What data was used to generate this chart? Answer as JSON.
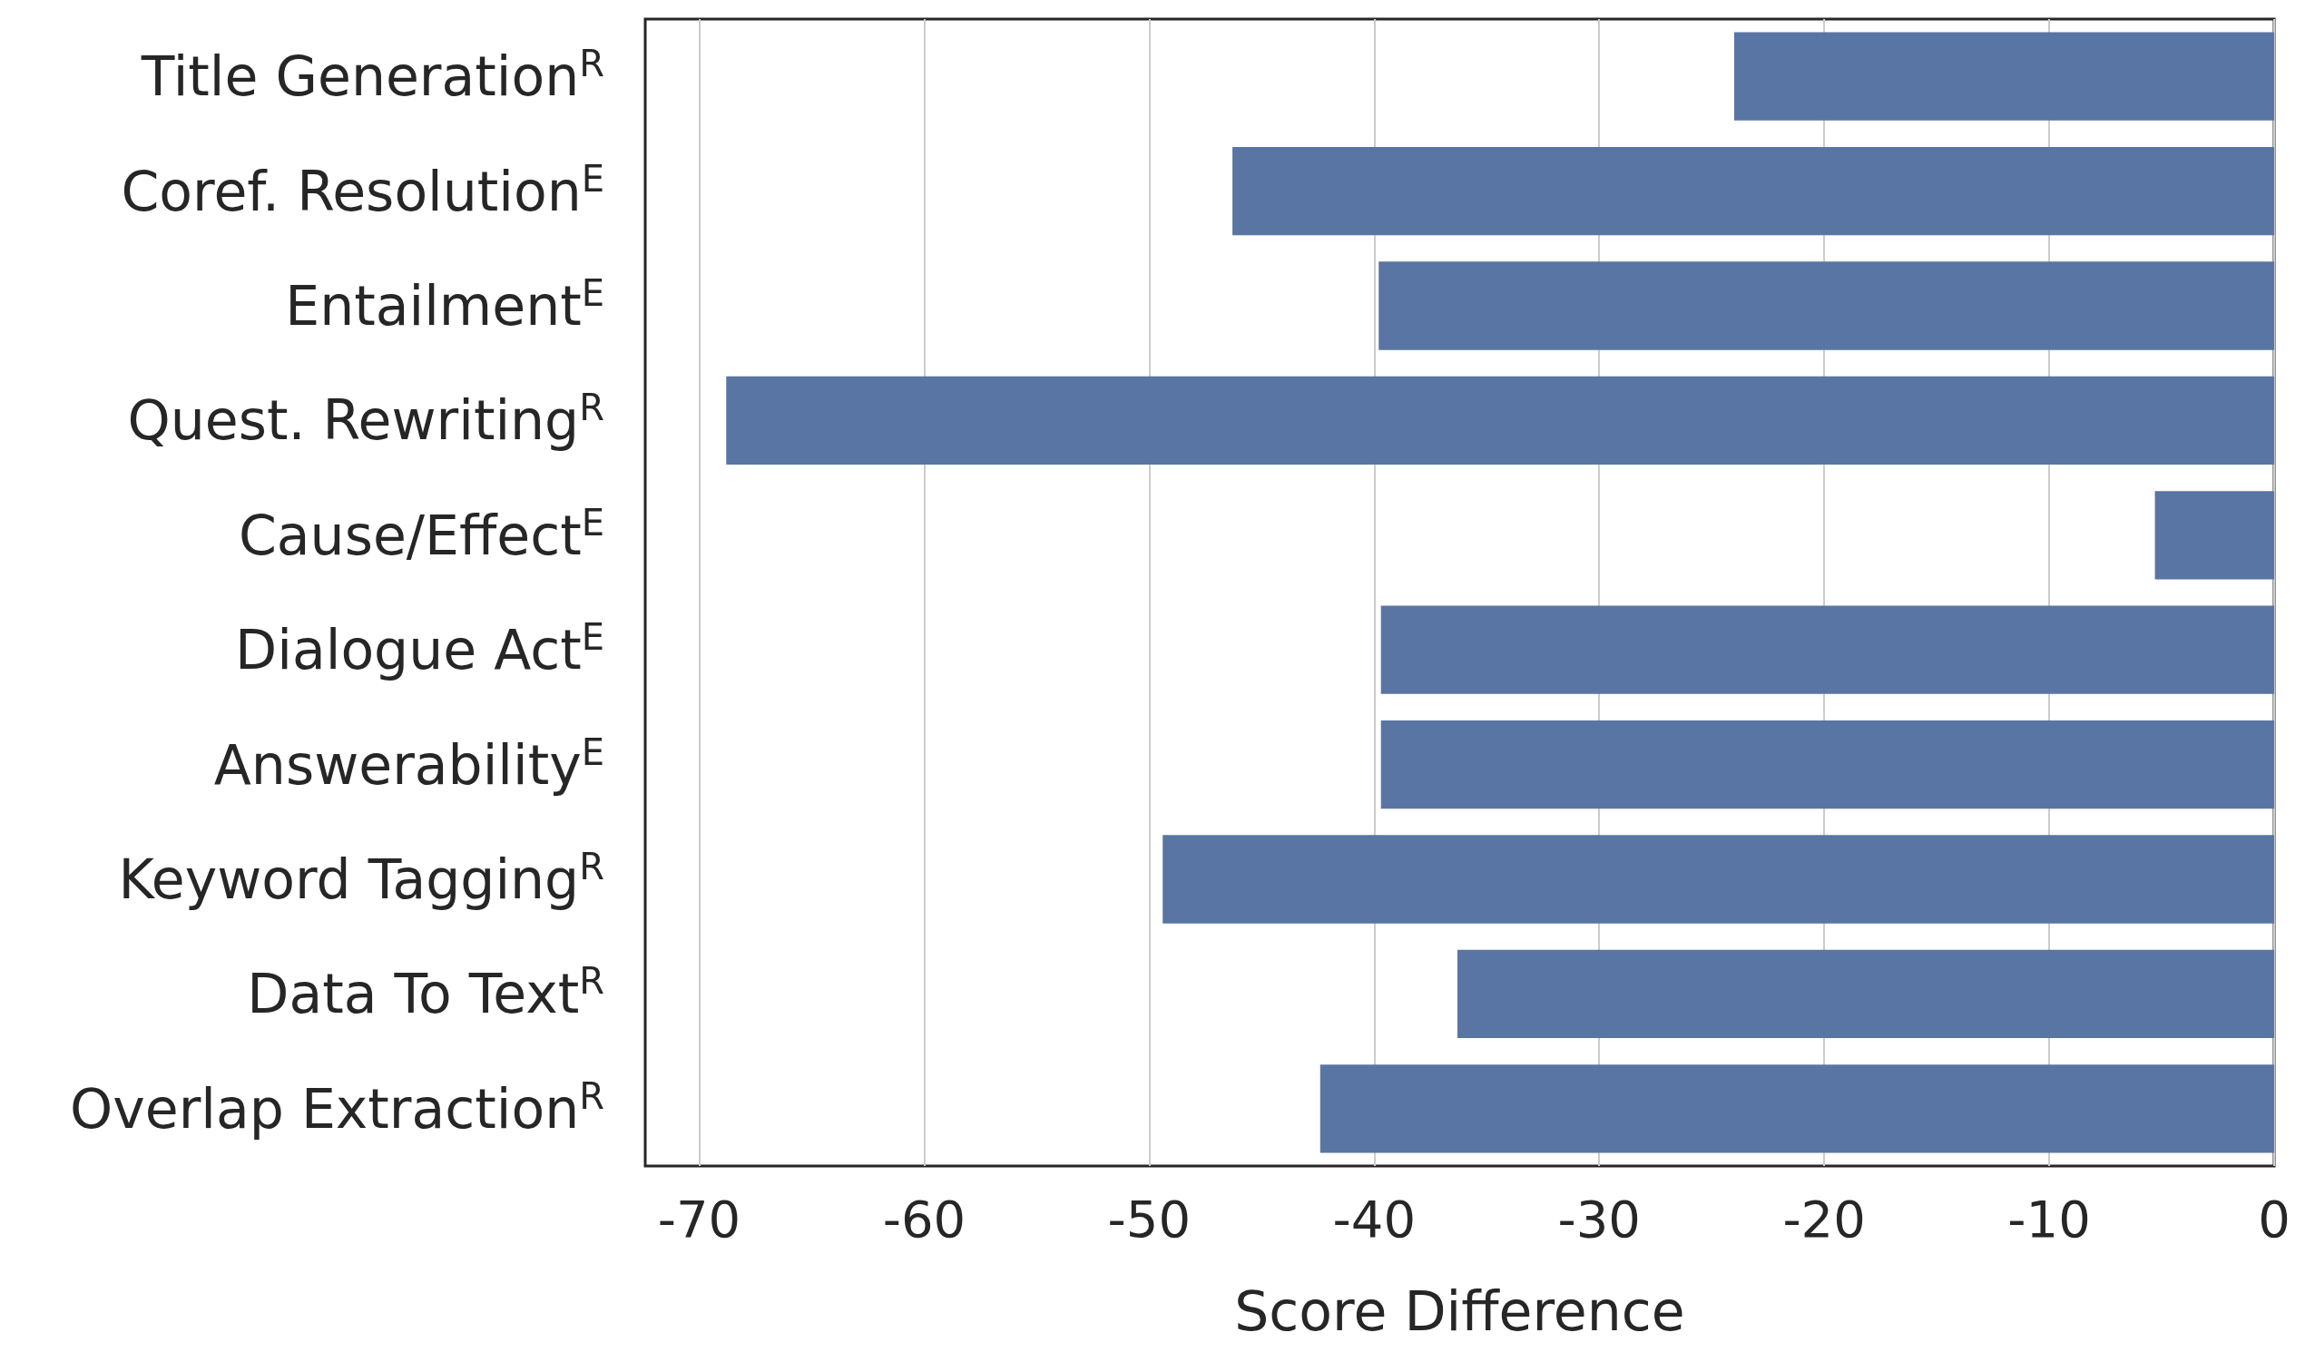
{
  "chart_data": {
    "type": "bar",
    "orientation": "horizontal",
    "xlabel": "Score Difference",
    "categories": [
      "Title Generation$^{R}$",
      "Coref. Resolution$^{E}$",
      "Entailment$^{E}$",
      "Quest. Rewriting$^{R}$",
      "Cause/Effect$^{E}$",
      "Dialogue Act$^{E}$",
      "Answerability$^{E}$",
      "Keyword Tagging$^{R}$",
      "Data To Text$^{R}$",
      "Overlap Extraction$^{R}$"
    ],
    "values": [
      -24.0,
      -46.3,
      -39.8,
      -68.8,
      -5.3,
      -39.7,
      -39.7,
      -49.4,
      -36.3,
      -42.4
    ],
    "color": "#5975a4",
    "xlim": [
      -72.4,
      0
    ],
    "xticks": [
      -70,
      -60,
      -50,
      -40,
      -30,
      -20,
      -10,
      0
    ],
    "grid": "x"
  }
}
